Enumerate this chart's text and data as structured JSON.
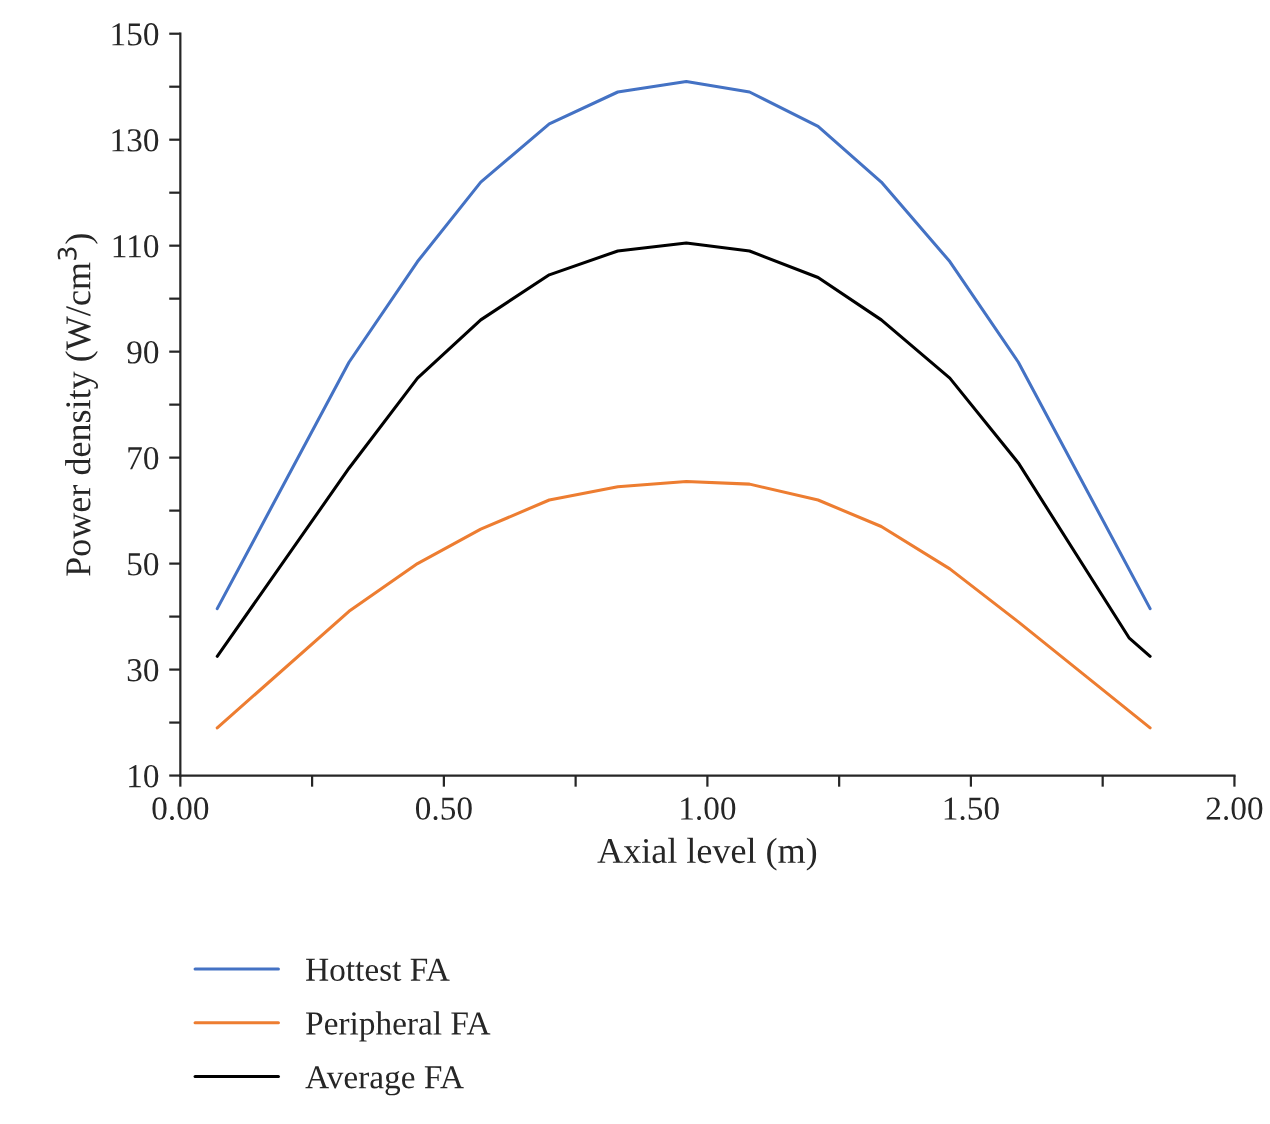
{
  "chart_data": {
    "type": "line",
    "xlabel": "Axial level (m)",
    "ylabel": "Power density (W/cm$^{3}$)",
    "xlim": [
      0,
      2
    ],
    "ylim": [
      10,
      150
    ],
    "xticks": [
      {
        "value": 0,
        "label": "0.00"
      },
      {
        "value": 0.25,
        "label": null
      },
      {
        "value": 0.5,
        "label": "0.50"
      },
      {
        "value": 0.75,
        "label": null
      },
      {
        "value": 1,
        "label": "1.00"
      },
      {
        "value": 1.25,
        "label": null
      },
      {
        "value": 1.5,
        "label": "1.50"
      },
      {
        "value": 1.75,
        "label": null
      },
      {
        "value": 2,
        "label": "2.00"
      }
    ],
    "yticks": [
      10,
      {
        "value": 20,
        "label": null
      },
      30,
      {
        "value": 40,
        "label": null
      },
      50,
      {
        "value": 60,
        "label": null
      },
      70,
      {
        "value": 80,
        "label": null
      },
      90,
      {
        "value": 100,
        "label": null
      },
      110,
      {
        "value": 120,
        "label": null
      },
      130,
      {
        "value": 140,
        "label": null
      },
      150
    ],
    "grid": false,
    "legend": "bottom",
    "marker": "none",
    "line_style": "solid",
    "series": [
      {
        "name": "Hottest FA",
        "color": "#4472c4",
        "x": [
          0.07,
          0.32,
          0.45,
          0.57,
          0.7,
          0.83,
          0.96,
          1.08,
          1.21,
          1.33,
          1.46,
          1.59,
          1.84
        ],
        "values": [
          41.5,
          88,
          107,
          122,
          133,
          139,
          141,
          139,
          132.5,
          122,
          107,
          88,
          41.5
        ]
      },
      {
        "name": "Peripheral FA",
        "color": "#ed7d31",
        "x": [
          0.07,
          0.32,
          0.45,
          0.57,
          0.7,
          0.83,
          0.96,
          1.08,
          1.21,
          1.33,
          1.46,
          1.59,
          1.84
        ],
        "values": [
          19,
          41,
          50,
          56.5,
          62,
          64.5,
          65.5,
          65,
          62,
          57,
          49,
          39,
          19
        ]
      },
      {
        "name": "Average FA",
        "color": "#000000",
        "x": [
          0.07,
          0.32,
          0.45,
          0.57,
          0.7,
          0.83,
          0.96,
          1.08,
          1.21,
          1.33,
          1.46,
          1.59,
          1.8,
          1.84
        ],
        "values": [
          32.5,
          68,
          85,
          96,
          104.5,
          109,
          110.5,
          109,
          104,
          96,
          85,
          69,
          36,
          32.5
        ]
      }
    ]
  }
}
